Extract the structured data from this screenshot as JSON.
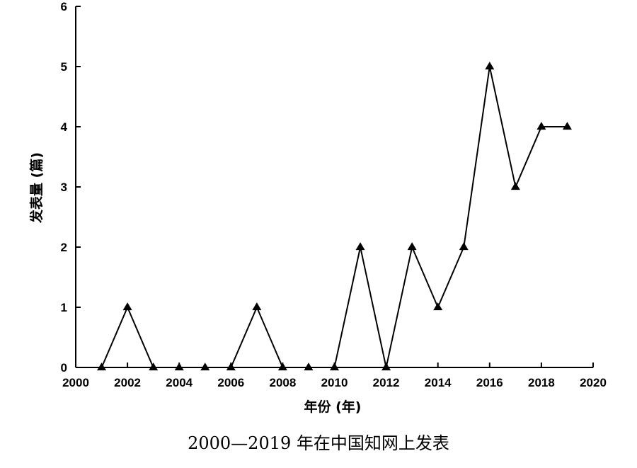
{
  "caption": "2000—2019 年在中国知网上发表",
  "chart_data": {
    "type": "line",
    "xlabel": "年份 (年)",
    "ylabel": "发表量 (篇)",
    "xlim": [
      2000,
      2020
    ],
    "ylim": [
      0,
      6
    ],
    "xticks": [
      2000,
      2002,
      2004,
      2006,
      2008,
      2010,
      2012,
      2014,
      2016,
      2018,
      2020
    ],
    "yticks": [
      0,
      1,
      2,
      3,
      4,
      5,
      6
    ],
    "marker": "filled-triangle",
    "line_color": "#000000",
    "grid": false,
    "series": [
      {
        "x": [
          2001,
          2002,
          2003,
          2004,
          2005,
          2006,
          2007,
          2008,
          2009,
          2010,
          2011,
          2012,
          2013,
          2014,
          2015,
          2016,
          2017,
          2018,
          2019
        ],
        "y": [
          0,
          1,
          0,
          0,
          0,
          0,
          1,
          0,
          0,
          0,
          2,
          0,
          2,
          1,
          2,
          5,
          3,
          4,
          4
        ]
      }
    ]
  }
}
